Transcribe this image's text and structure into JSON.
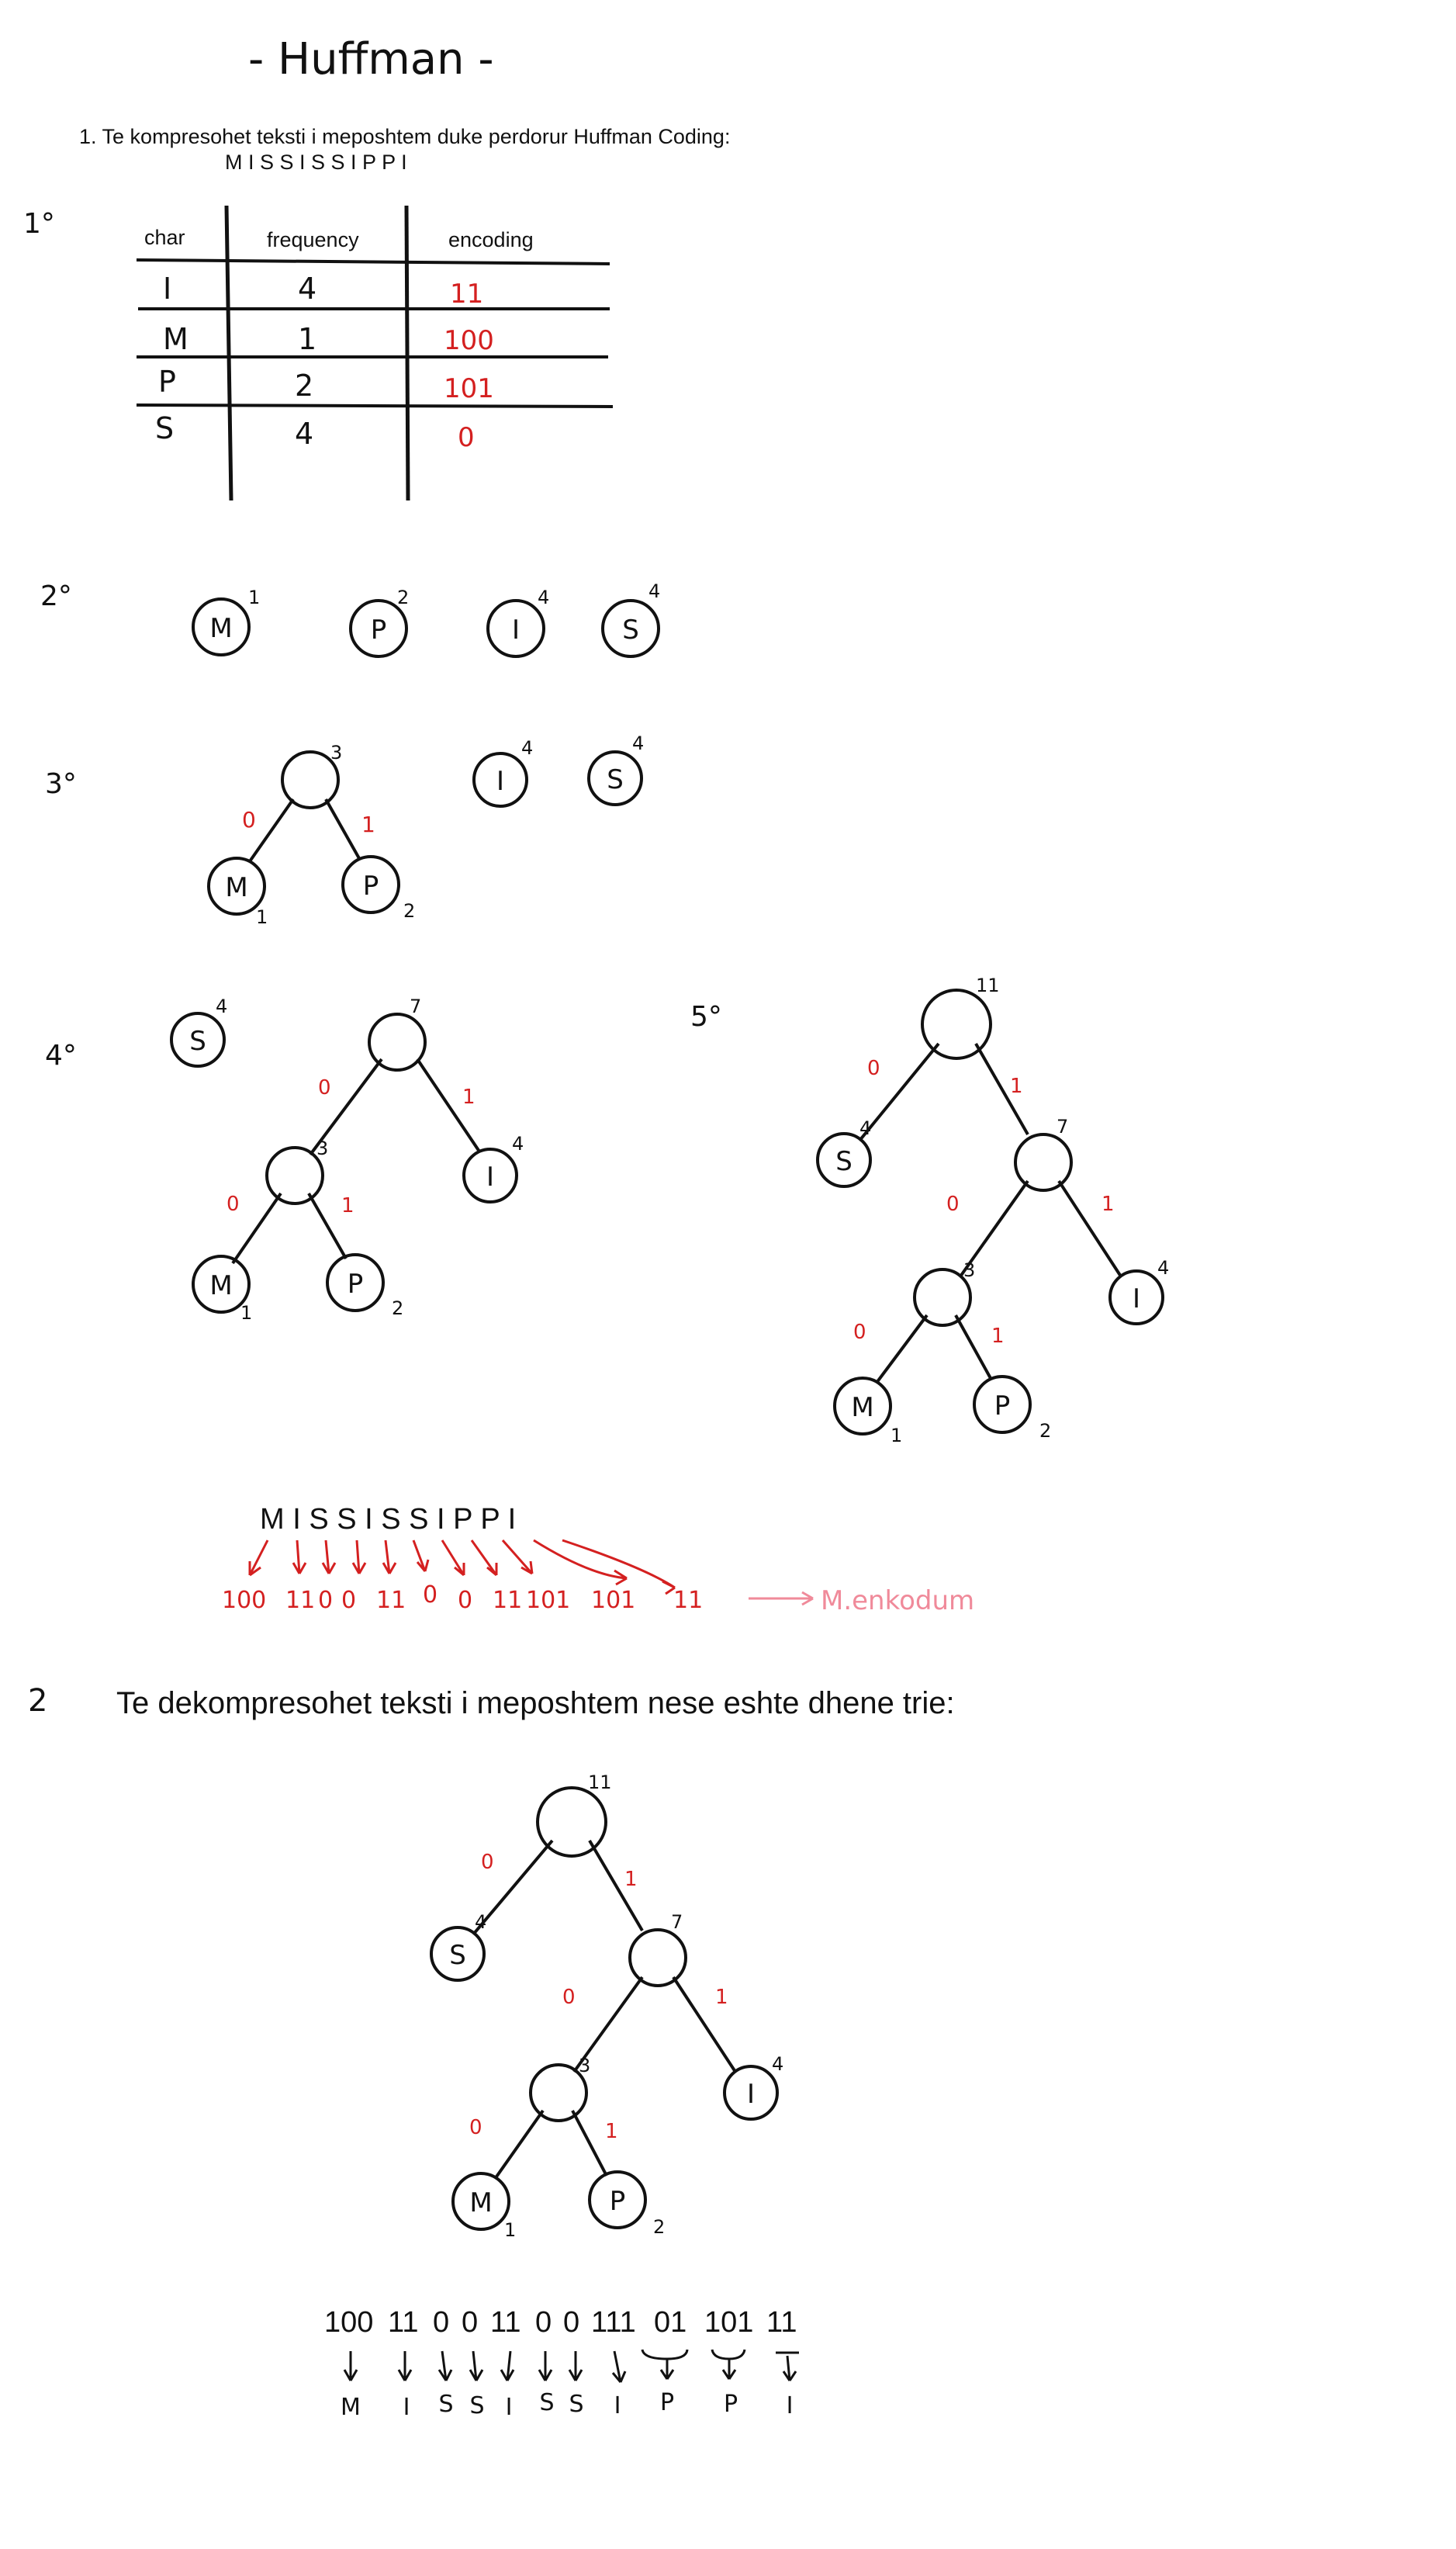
{
  "title": "- Huffman -",
  "task1": {
    "prompt": "1. Te kompresohet teksti i meposhtem duke perdorur Huffman Coding:",
    "text": "M I S S I S S I P P I"
  },
  "steps": {
    "s1": "1°",
    "s2": "2°",
    "s3": "3°",
    "s4": "4°",
    "s5": "5°"
  },
  "table": {
    "headers": [
      "char",
      "frequency",
      "encoding"
    ],
    "rows": [
      {
        "char": "I",
        "freq": "4",
        "code": "11"
      },
      {
        "char": "M",
        "freq": "1",
        "code": "100"
      },
      {
        "char": "P",
        "freq": "2",
        "code": "101"
      },
      {
        "char": "S",
        "freq": "4",
        "code": "0"
      }
    ]
  },
  "leaves": [
    {
      "label": "M",
      "weight": "1"
    },
    {
      "label": "P",
      "weight": "2"
    },
    {
      "label": "I",
      "weight": "4"
    },
    {
      "label": "S",
      "weight": "4"
    }
  ],
  "encoding": {
    "text": "M I S S I S S I P P I",
    "codes": [
      "100",
      "11",
      "0",
      "0",
      "11",
      "0",
      "0",
      "11",
      "101",
      "101",
      "11"
    ],
    "note": "M.enkodum"
  },
  "task2": {
    "number": "2",
    "prompt": "Te dekompresohet teksti i meposhtem nese eshte dhene trie:",
    "code_groups": [
      "100",
      "11",
      "0",
      "0",
      "11",
      "0",
      "0",
      "111",
      "01",
      "101",
      "11"
    ],
    "decoded": [
      "M",
      "I",
      "S",
      "S",
      "I",
      "S",
      "S",
      "I",
      "P",
      "P",
      "I"
    ]
  },
  "colors": {
    "ink": "#111111",
    "red": "#d42020",
    "pink": "#f08a9a"
  }
}
